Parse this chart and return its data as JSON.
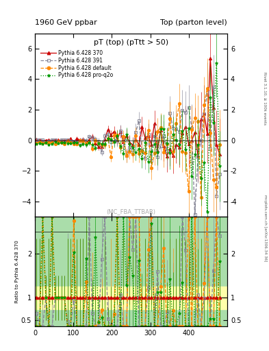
{
  "title_left": "1960 GeV ppbar",
  "title_right": "Top (parton level)",
  "plot_title": "pT (top) (pTtt > 50)",
  "watermark": "(MC_FBA_TTBAR)",
  "ylabel_ratio": "Ratio to Pythia 6.428 370",
  "right_label_top": "Rivet 3.1.10, ≥ 100k events",
  "right_label_bot": "mcplots.cern.ch [arXiv:1306.34 36]",
  "series": [
    {
      "label": "Pythia 6.428 370",
      "color": "#cc0000",
      "linestyle": "-",
      "marker": "^",
      "lw": 1.0
    },
    {
      "label": "Pythia 6.428 391",
      "color": "#888899",
      "linestyle": "--",
      "marker": "s",
      "lw": 1.0
    },
    {
      "label": "Pythia 6.428 default",
      "color": "#ff8800",
      "linestyle": "--",
      "marker": "o",
      "lw": 1.0
    },
    {
      "label": "Pythia 6.428 pro-q2o",
      "color": "#009900",
      "linestyle": ":",
      "marker": "*",
      "lw": 1.0
    }
  ],
  "xlim": [
    0,
    500
  ],
  "ylim_main": [
    -5,
    7
  ],
  "ylim_ratio": [
    0.35,
    2.85
  ],
  "yticks_main": [
    -4,
    -2,
    0,
    2,
    4,
    6
  ],
  "yticks_ratio": [
    0.5,
    1.0,
    2.0
  ],
  "band_color_green": "#aaddaa",
  "band_color_yellow": "#ffffaa",
  "bg_color": "#ffffff"
}
